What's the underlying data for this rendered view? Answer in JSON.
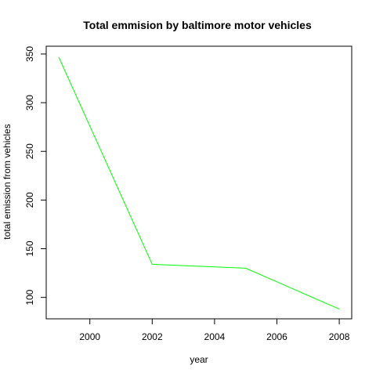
{
  "chart_data": {
    "type": "line",
    "title": "Total emmision by baltimore motor vehicles",
    "xlabel": "year",
    "ylabel": "total emission from vehicles",
    "x": [
      1999,
      2002,
      2005,
      2008
    ],
    "series": [
      {
        "values": [
          347,
          134,
          130,
          88
        ],
        "color": "#00ff00"
      }
    ],
    "xlim": [
      1998.6,
      2008.4
    ],
    "ylim": [
      78,
      358
    ],
    "xticks": [
      2000,
      2002,
      2004,
      2006,
      2008
    ],
    "yticks": [
      100,
      150,
      200,
      250,
      300,
      350
    ],
    "grid": false
  }
}
